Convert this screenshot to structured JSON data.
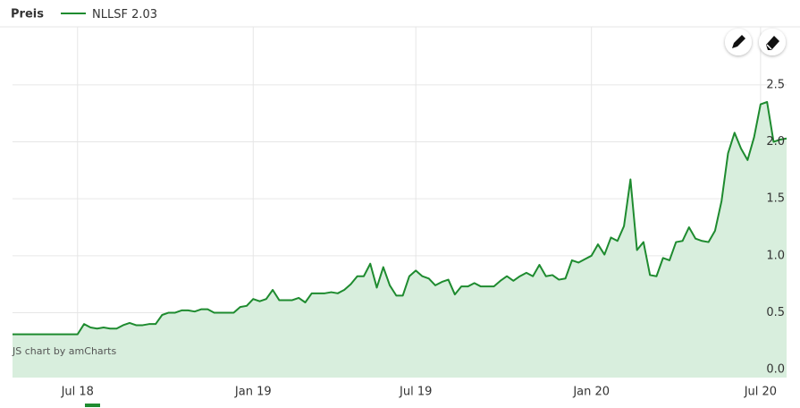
{
  "chart_data": {
    "type": "area",
    "legend_title": "Preis",
    "watermark": "JS chart by amCharts",
    "categories": [
      null,
      null,
      null,
      null,
      null,
      null,
      null,
      null,
      null,
      null,
      "Jul 18",
      null,
      null,
      null,
      null,
      null,
      null,
      null,
      null,
      null,
      null,
      null,
      null,
      null,
      null,
      null,
      null,
      null,
      null,
      null,
      null,
      null,
      null,
      null,
      null,
      null,
      null,
      "Jan 19",
      null,
      null,
      null,
      null,
      null,
      null,
      null,
      null,
      null,
      null,
      null,
      null,
      null,
      null,
      null,
      null,
      null,
      null,
      null,
      null,
      null,
      null,
      null,
      null,
      "Jul 19",
      null,
      null,
      null,
      null,
      null,
      null,
      null,
      null,
      null,
      null,
      null,
      null,
      null,
      null,
      null,
      null,
      null,
      null,
      null,
      null,
      null,
      null,
      null,
      null,
      null,
      null,
      "Jan 20",
      null,
      null,
      null,
      null,
      null,
      null,
      null,
      null,
      null,
      null,
      null,
      null,
      null,
      null,
      null,
      null,
      null,
      null,
      null,
      null,
      null,
      null,
      null,
      null,
      null,
      "Jul 20",
      null,
      null,
      null,
      null
    ],
    "series": [
      {
        "name": "NLLSF",
        "color": "#1e8b2f",
        "fill": "#d8eedd",
        "values": [
          0.31,
          0.31,
          0.31,
          0.31,
          0.31,
          0.31,
          0.31,
          0.31,
          0.31,
          0.31,
          0.31,
          0.4,
          0.37,
          0.36,
          0.37,
          0.36,
          0.36,
          0.39,
          0.41,
          0.39,
          0.39,
          0.4,
          0.4,
          0.48,
          0.5,
          0.5,
          0.52,
          0.52,
          0.51,
          0.53,
          0.53,
          0.5,
          0.5,
          0.5,
          0.5,
          0.55,
          0.56,
          0.62,
          0.6,
          0.62,
          0.7,
          0.61,
          0.61,
          0.61,
          0.63,
          0.59,
          0.67,
          0.67,
          0.67,
          0.68,
          0.67,
          0.7,
          0.75,
          0.82,
          0.82,
          0.93,
          0.72,
          0.9,
          0.74,
          0.65,
          0.65,
          0.82,
          0.87,
          0.82,
          0.8,
          0.74,
          0.77,
          0.79,
          0.66,
          0.73,
          0.73,
          0.76,
          0.73,
          0.73,
          0.73,
          0.78,
          0.82,
          0.78,
          0.82,
          0.85,
          0.82,
          0.92,
          0.82,
          0.83,
          0.79,
          0.8,
          0.96,
          0.94,
          0.97,
          1.0,
          1.1,
          1.01,
          1.16,
          1.13,
          1.26,
          1.67,
          1.05,
          1.12,
          0.83,
          0.82,
          0.98,
          0.96,
          1.12,
          1.13,
          1.25,
          1.15,
          1.13,
          1.12,
          1.22,
          1.48,
          1.9,
          2.08,
          1.94,
          1.84,
          2.04,
          2.33,
          2.35,
          2.0,
          2.02,
          2.03
        ]
      }
    ],
    "ylim": [
      -0.07,
      3.01
    ],
    "yticks": [
      {
        "value": 0,
        "label": "0.0"
      },
      0.5,
      {
        "value": 1,
        "label": "1.0"
      },
      1.5,
      {
        "value": 2,
        "label": "2.0"
      },
      2.5
    ],
    "grid": true
  }
}
